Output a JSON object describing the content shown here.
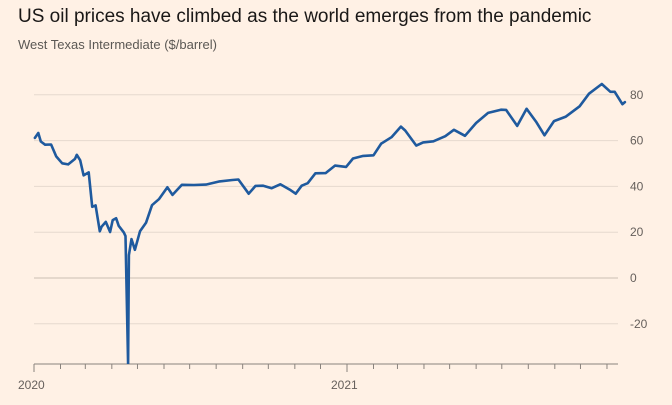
{
  "title": "US oil prices have climbed as the world emerges from the pandemic",
  "subtitle": "West Texas Intermediate ($/barrel)",
  "colors": {
    "background": "#fff1e5",
    "line": "#1f5a9e",
    "grid": "#e6d9ce",
    "zero": "#cbbfb4"
  },
  "chart_data": {
    "type": "line",
    "title": "US oil prices have climbed as the world emerges from the pandemic",
    "ylabel": "West Texas Intermediate ($/barrel)",
    "xlabel": "",
    "ylim": [
      -37,
      88
    ],
    "yticks": [
      80,
      60,
      40,
      20,
      0,
      -20
    ],
    "xtick_labels": [
      {
        "date": "2020-01-01",
        "label": "2020"
      },
      {
        "date": "2021-01-01",
        "label": "2021"
      }
    ],
    "grid": true,
    "series": [
      {
        "values": [
          {
            "x": "2020-01-02",
            "y": 61.2
          },
          {
            "x": "2020-01-06",
            "y": 63.3
          },
          {
            "x": "2020-01-09",
            "y": 59.6
          },
          {
            "x": "2020-01-14",
            "y": 58.2
          },
          {
            "x": "2020-01-21",
            "y": 58.3
          },
          {
            "x": "2020-01-27",
            "y": 53.1
          },
          {
            "x": "2020-02-03",
            "y": 50.1
          },
          {
            "x": "2020-02-10",
            "y": 49.6
          },
          {
            "x": "2020-02-18",
            "y": 52.0
          },
          {
            "x": "2020-02-20",
            "y": 53.8
          },
          {
            "x": "2020-02-24",
            "y": 51.4
          },
          {
            "x": "2020-02-28",
            "y": 44.8
          },
          {
            "x": "2020-03-05",
            "y": 46.1
          },
          {
            "x": "2020-03-09",
            "y": 31.1
          },
          {
            "x": "2020-03-13",
            "y": 31.7
          },
          {
            "x": "2020-03-18",
            "y": 20.4
          },
          {
            "x": "2020-03-20",
            "y": 22.4
          },
          {
            "x": "2020-03-25",
            "y": 24.5
          },
          {
            "x": "2020-03-30",
            "y": 20.1
          },
          {
            "x": "2020-04-02",
            "y": 25.3
          },
          {
            "x": "2020-04-06",
            "y": 26.1
          },
          {
            "x": "2020-04-09",
            "y": 22.8
          },
          {
            "x": "2020-04-15",
            "y": 19.9
          },
          {
            "x": "2020-04-17",
            "y": 18.3
          },
          {
            "x": "2020-04-20",
            "y": -37.6
          },
          {
            "x": "2020-04-21",
            "y": 10.0
          },
          {
            "x": "2020-04-24",
            "y": 17.0
          },
          {
            "x": "2020-04-28",
            "y": 12.3
          },
          {
            "x": "2020-05-04",
            "y": 20.4
          },
          {
            "x": "2020-05-11",
            "y": 24.1
          },
          {
            "x": "2020-05-18",
            "y": 31.8
          },
          {
            "x": "2020-05-26",
            "y": 34.4
          },
          {
            "x": "2020-06-05",
            "y": 39.6
          },
          {
            "x": "2020-06-11",
            "y": 36.3
          },
          {
            "x": "2020-06-22",
            "y": 40.7
          },
          {
            "x": "2020-07-06",
            "y": 40.6
          },
          {
            "x": "2020-07-20",
            "y": 40.8
          },
          {
            "x": "2020-08-05",
            "y": 42.2
          },
          {
            "x": "2020-08-20",
            "y": 42.8
          },
          {
            "x": "2020-08-27",
            "y": 43.0
          },
          {
            "x": "2020-09-08",
            "y": 36.8
          },
          {
            "x": "2020-09-16",
            "y": 40.2
          },
          {
            "x": "2020-09-25",
            "y": 40.3
          },
          {
            "x": "2020-10-05",
            "y": 39.2
          },
          {
            "x": "2020-10-15",
            "y": 40.9
          },
          {
            "x": "2020-10-26",
            "y": 38.6
          },
          {
            "x": "2020-11-02",
            "y": 36.8
          },
          {
            "x": "2020-11-09",
            "y": 40.3
          },
          {
            "x": "2020-11-16",
            "y": 41.4
          },
          {
            "x": "2020-11-25",
            "y": 45.7
          },
          {
            "x": "2020-12-07",
            "y": 45.8
          },
          {
            "x": "2020-12-18",
            "y": 49.1
          },
          {
            "x": "2020-12-31",
            "y": 48.5
          },
          {
            "x": "2021-01-08",
            "y": 52.2
          },
          {
            "x": "2021-01-20",
            "y": 53.3
          },
          {
            "x": "2021-02-01",
            "y": 53.6
          },
          {
            "x": "2021-02-10",
            "y": 58.7
          },
          {
            "x": "2021-02-22",
            "y": 61.5
          },
          {
            "x": "2021-03-05",
            "y": 66.1
          },
          {
            "x": "2021-03-10",
            "y": 64.4
          },
          {
            "x": "2021-03-23",
            "y": 57.8
          },
          {
            "x": "2021-03-31",
            "y": 59.2
          },
          {
            "x": "2021-04-12",
            "y": 59.7
          },
          {
            "x": "2021-04-26",
            "y": 61.9
          },
          {
            "x": "2021-05-06",
            "y": 64.7
          },
          {
            "x": "2021-05-19",
            "y": 62.1
          },
          {
            "x": "2021-06-01",
            "y": 67.7
          },
          {
            "x": "2021-06-15",
            "y": 72.1
          },
          {
            "x": "2021-06-30",
            "y": 73.5
          },
          {
            "x": "2021-07-06",
            "y": 73.4
          },
          {
            "x": "2021-07-19",
            "y": 66.4
          },
          {
            "x": "2021-07-30",
            "y": 73.9
          },
          {
            "x": "2021-08-10",
            "y": 68.3
          },
          {
            "x": "2021-08-20",
            "y": 62.3
          },
          {
            "x": "2021-08-31",
            "y": 68.5
          },
          {
            "x": "2021-09-14",
            "y": 70.5
          },
          {
            "x": "2021-09-30",
            "y": 75.0
          },
          {
            "x": "2021-10-11",
            "y": 80.5
          },
          {
            "x": "2021-10-26",
            "y": 84.7
          },
          {
            "x": "2021-11-05",
            "y": 81.3
          },
          {
            "x": "2021-11-10",
            "y": 81.3
          },
          {
            "x": "2021-11-19",
            "y": 75.9
          },
          {
            "x": "2021-11-22",
            "y": 76.8
          }
        ]
      }
    ]
  }
}
